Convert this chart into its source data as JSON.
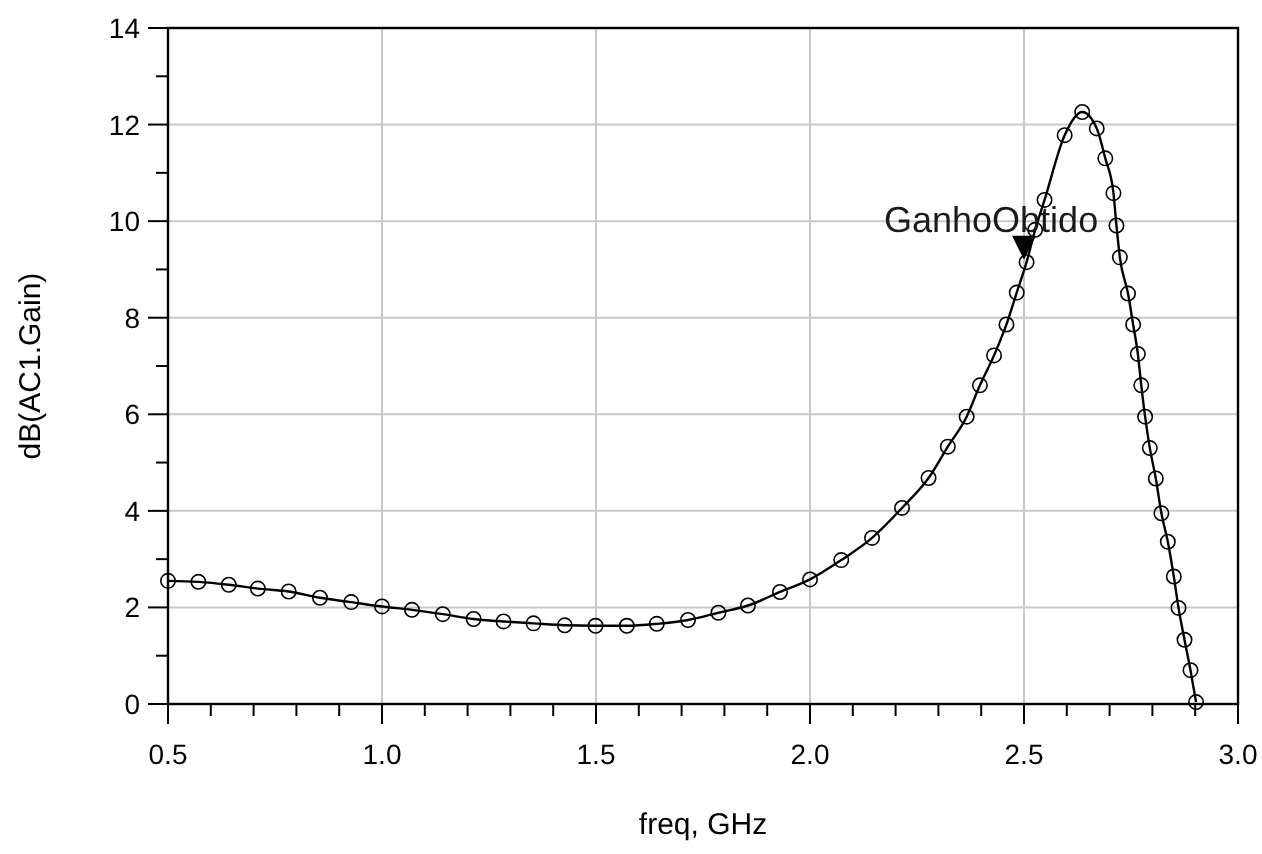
{
  "chart_data": {
    "type": "line",
    "xlabel": "freq, GHz",
    "ylabel": "dB(AC1.Gain)",
    "annotations": [
      {
        "text": "GanhoObtido",
        "x": 2.5,
        "y": 9.2
      }
    ],
    "xlim": [
      0.5,
      3.0
    ],
    "ylim": [
      0,
      14
    ],
    "xticks": [
      {
        "value": 0.5,
        "label": "0.5"
      },
      {
        "value": 0.6,
        "label": null
      },
      {
        "value": 0.7,
        "label": null
      },
      {
        "value": 0.8,
        "label": null
      },
      {
        "value": 0.9,
        "label": null
      },
      {
        "value": 1.0,
        "label": "1.0"
      },
      {
        "value": 1.1,
        "label": null
      },
      {
        "value": 1.2,
        "label": null
      },
      {
        "value": 1.3,
        "label": null
      },
      {
        "value": 1.4,
        "label": null
      },
      {
        "value": 1.5,
        "label": "1.5"
      },
      {
        "value": 1.6,
        "label": null
      },
      {
        "value": 1.7,
        "label": null
      },
      {
        "value": 1.8,
        "label": null
      },
      {
        "value": 1.9,
        "label": null
      },
      {
        "value": 2.0,
        "label": "2.0"
      },
      {
        "value": 2.1,
        "label": null
      },
      {
        "value": 2.2,
        "label": null
      },
      {
        "value": 2.3,
        "label": null
      },
      {
        "value": 2.4,
        "label": null
      },
      {
        "value": 2.5,
        "label": "2.5"
      },
      {
        "value": 2.6,
        "label": null
      },
      {
        "value": 2.7,
        "label": null
      },
      {
        "value": 2.8,
        "label": null
      },
      {
        "value": 2.9,
        "label": null
      },
      {
        "value": 3.0,
        "label": "3.0"
      }
    ],
    "yticks": [
      0,
      {
        "value": 1,
        "label": null
      },
      2,
      {
        "value": 3,
        "label": null
      },
      4,
      {
        "value": 5,
        "label": null
      },
      6,
      {
        "value": 7,
        "label": null
      },
      8,
      {
        "value": 9,
        "label": null
      },
      10,
      {
        "value": 11,
        "label": null
      },
      12,
      {
        "value": 13,
        "label": null
      },
      14
    ],
    "grid": true,
    "marker": "circle",
    "line_style": "solid",
    "series": [
      {
        "color": "#000000",
        "x": [
          0.5,
          0.571,
          0.642,
          0.71,
          0.782,
          0.855,
          0.928,
          1.0,
          1.07,
          1.142,
          1.214,
          1.284,
          1.354,
          1.427,
          1.499,
          1.572,
          1.642,
          1.715,
          1.786,
          1.855,
          1.93,
          2.0,
          2.073,
          2.145,
          2.215,
          2.277,
          2.322,
          2.366,
          2.397,
          2.43,
          2.459,
          2.483,
          2.506,
          2.526,
          2.548,
          2.595,
          2.636,
          2.67,
          2.69,
          2.709,
          2.716,
          2.724,
          2.743,
          2.755,
          2.766,
          2.774,
          2.783,
          2.794,
          2.808,
          2.821,
          2.836,
          2.85,
          2.861,
          2.875,
          2.889,
          2.902
        ],
        "values": [
          2.55,
          2.53,
          2.47,
          2.39,
          2.33,
          2.2,
          2.11,
          2.02,
          1.95,
          1.86,
          1.76,
          1.71,
          1.67,
          1.63,
          1.62,
          1.62,
          1.66,
          1.74,
          1.89,
          2.04,
          2.32,
          2.58,
          2.98,
          3.44,
          4.06,
          4.68,
          5.33,
          5.95,
          6.6,
          7.22,
          7.86,
          8.52,
          9.15,
          9.82,
          10.44,
          11.78,
          12.26,
          11.92,
          11.3,
          10.58,
          9.91,
          9.25,
          8.5,
          7.86,
          7.25,
          6.6,
          5.95,
          5.3,
          4.67,
          3.95,
          3.36,
          2.64,
          1.99,
          1.33,
          0.7,
          0.04
        ]
      }
    ]
  }
}
